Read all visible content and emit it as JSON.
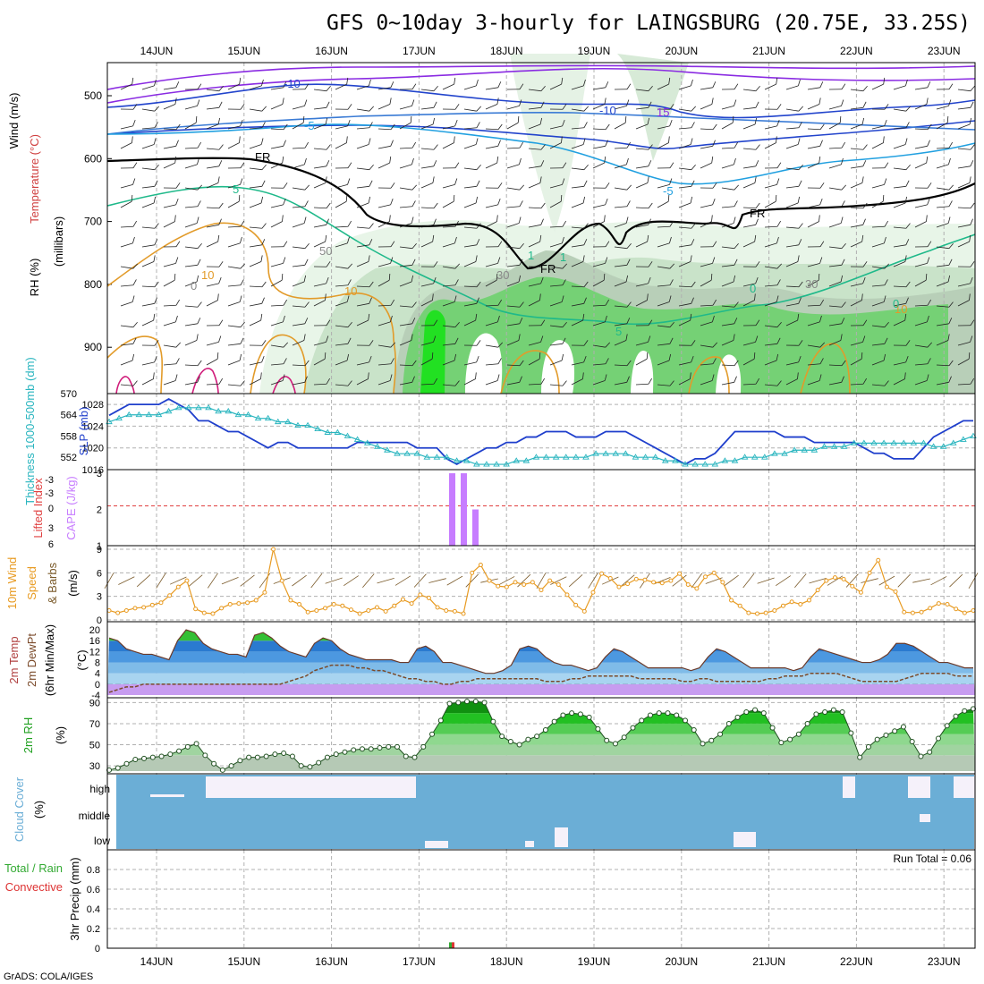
{
  "title": "GFS 0~10day 3-hourly for LAINGSBURG (20.75E, 33.25S)",
  "credit": "GrADS: COLA/IGES",
  "run_total_label": "Run Total = 0.06",
  "dates": [
    "14JUN",
    "15JUN",
    "16JUN",
    "17JUN",
    "18JUN",
    "19JUN",
    "20JUN",
    "21JUN",
    "22JUN",
    "23JUN"
  ],
  "colors": {
    "green_rh": "#33cc33",
    "blue_slp": "#1f3fcc",
    "cyan_thk": "#29b5bf",
    "purple_cape": "#c77dff",
    "orange_wind": "#e89b22",
    "cloud_blue": "#6baed6"
  },
  "chart_data": [
    {
      "type": "heatmap",
      "id": "upper_air",
      "ylabels": [
        "Wind (m/s)",
        "Temperature (°C)",
        "RH (%)",
        "(millibars)"
      ],
      "yticks": [
        500,
        600,
        700,
        800,
        900
      ],
      "contour_labels": [
        "-10",
        "-10",
        "15",
        "-5",
        "-5",
        "FR",
        "FR",
        "FR",
        "5",
        "5",
        "10",
        "10",
        "10",
        "30",
        "30",
        "50",
        "1",
        "1",
        "0",
        "0",
        "0"
      ]
    },
    {
      "type": "line",
      "id": "slp_thickness",
      "ylabel_left": "Thickness 1000-500mb (dm)",
      "ylabel_right": "SLP (mb)",
      "yticks_left": [
        552,
        558,
        564,
        570
      ],
      "yticks_right": [
        1016,
        1020,
        1024,
        1028
      ],
      "ylim_right": [
        1016,
        1030
      ],
      "ylim_left": [
        548.5,
        570
      ],
      "series": [
        {
          "name": "SLP (mb)",
          "values": [
            1026,
            1027,
            1028,
            1028,
            1028,
            1028,
            1029,
            1028,
            1027,
            1025,
            1025,
            1024,
            1023,
            1023,
            1022,
            1021,
            1020,
            1021,
            1021,
            1020,
            1020,
            1020,
            1020,
            1020,
            1020,
            1021,
            1021,
            1021,
            1021,
            1021,
            1021,
            1020,
            1020,
            1020,
            1018,
            1017,
            1018,
            1019,
            1020,
            1020,
            1021,
            1021,
            1022,
            1022,
            1023,
            1023,
            1023,
            1022,
            1022,
            1022,
            1023,
            1023,
            1023,
            1022,
            1021,
            1020,
            1019,
            1018,
            1017,
            1018,
            1018,
            1019,
            1021,
            1023,
            1023,
            1023,
            1023,
            1023,
            1022,
            1022,
            1022,
            1021,
            1021,
            1021,
            1021,
            1021,
            1020,
            1019,
            1019,
            1018,
            1018,
            1018,
            1020,
            1022,
            1023,
            1024,
            1025,
            1025
          ]
        },
        {
          "name": "Thickness 1000-500mb (dm)",
          "values": [
            562,
            563,
            564,
            564,
            564,
            564,
            565,
            566,
            566,
            566,
            566,
            565,
            565,
            564,
            564,
            563,
            563,
            562,
            562,
            561,
            561,
            560,
            559,
            559,
            558,
            557,
            556,
            555,
            554,
            553,
            553,
            553,
            552,
            552,
            552,
            551,
            551,
            550,
            550,
            550,
            550,
            551,
            551,
            552,
            552,
            552,
            552,
            552,
            552,
            553,
            553,
            553,
            553,
            552,
            552,
            552,
            551,
            551,
            550,
            550,
            550,
            550,
            551,
            551,
            552,
            552,
            552,
            553,
            553,
            554,
            554,
            554,
            555,
            555,
            555,
            556,
            556,
            556,
            556,
            556,
            556,
            556,
            556,
            555,
            555,
            556,
            557,
            558
          ]
        }
      ]
    },
    {
      "type": "bar",
      "id": "cape_li",
      "ylabel_left": "Lifted Index",
      "ylabel_right": "CAPE (J/kg)",
      "yticks_left": [
        "-3",
        "-3",
        "0",
        "3",
        "6"
      ],
      "yticks_right": [
        1,
        2,
        3
      ],
      "ylim": [
        1,
        3.1
      ],
      "dashed_level": 2.1,
      "bars": [
        {
          "x": "17JUN 09",
          "value": 3
        },
        {
          "x": "17JUN 12",
          "value": 3
        },
        {
          "x": "17JUN 15",
          "value": 2
        }
      ]
    },
    {
      "type": "line",
      "id": "wind10m",
      "ylabel": [
        "10m Wind",
        "Speed",
        "& Barbs",
        "(m/s)"
      ],
      "yticks": [
        0,
        3,
        6,
        9
      ],
      "ylim": [
        0,
        9
      ],
      "series": [
        {
          "name": "10m Wind Speed",
          "values": [
            1.2,
            0.9,
            1.2,
            1.5,
            1.6,
            1.9,
            2.2,
            3.1,
            4.2,
            5.0,
            1.4,
            0.9,
            0.8,
            1.5,
            2.0,
            2.1,
            2.2,
            2.5,
            3.5,
            9.0,
            5.0,
            2.5,
            2.0,
            1.0,
            1.2,
            1.5,
            2.0,
            1.8,
            1.3,
            0.8,
            1.2,
            1.6,
            1.1,
            1.8,
            2.6,
            2.1,
            3.2,
            2.8,
            1.6,
            1.2,
            1.1,
            0.8,
            6.0,
            7.0,
            5.0,
            4.3,
            4.2,
            4.8,
            4.5,
            4.8,
            3.8,
            5.0,
            4.5,
            3.2,
            1.9,
            1.1,
            3.5,
            5.9,
            5.3,
            4.2,
            4.6,
            5.2,
            5.1,
            4.8,
            4.7,
            5.0,
            5.9,
            4.5,
            4.0,
            5.5,
            6.0,
            4.8,
            2.5,
            1.8,
            0.9,
            0.8,
            0.9,
            1.2,
            1.8,
            2.3,
            2.0,
            2.5,
            3.8,
            5.0,
            5.4,
            5.2,
            4.3,
            3.5,
            6.0,
            7.6,
            4.2,
            3.6,
            1.0,
            0.9,
            1.0,
            1.5,
            2.1,
            2.0,
            1.4,
            0.9,
            1.2
          ]
        }
      ]
    },
    {
      "type": "area",
      "id": "temp2m",
      "ylabel": [
        "2m Temp",
        "2m DewPt",
        "(6hr Min/Max)",
        "(°C)"
      ],
      "yticks": [
        -4,
        0,
        4,
        8,
        12,
        16,
        20
      ],
      "ylim": [
        -4,
        22
      ],
      "series": [
        {
          "name": "2m Temp",
          "values": [
            17,
            16,
            13,
            12,
            11,
            11,
            10,
            9,
            16,
            20,
            19,
            15,
            13,
            12,
            11,
            11,
            10,
            18,
            19,
            17,
            14,
            12,
            11,
            10,
            15,
            17,
            16,
            13,
            11,
            10,
            9,
            9,
            9,
            9,
            8,
            8,
            13,
            14,
            12,
            8,
            8,
            7,
            6,
            5,
            4,
            4,
            5,
            7,
            13,
            14,
            13,
            10,
            8,
            7,
            7,
            6,
            5,
            6,
            10,
            13,
            12,
            10,
            8,
            6,
            6,
            6,
            6,
            6,
            5,
            6,
            10,
            13,
            12,
            10,
            8,
            6,
            6,
            6,
            6,
            6,
            5,
            6,
            10,
            13,
            12,
            11,
            10,
            9,
            8,
            8,
            9,
            11,
            15,
            15,
            14,
            12,
            10,
            8,
            8,
            7,
            6,
            6
          ]
        },
        {
          "name": "2m DewPt",
          "values": [
            -3,
            -2,
            -1,
            -1,
            0,
            0,
            0,
            0,
            0,
            0,
            0,
            0,
            0,
            0,
            0,
            0,
            0,
            0,
            0,
            0,
            0,
            1,
            2,
            3,
            5,
            6,
            7,
            7,
            7,
            6,
            6,
            5,
            5,
            4,
            3,
            2,
            2,
            1,
            1,
            0,
            0,
            1,
            1,
            2,
            2,
            2,
            2,
            2,
            2,
            2,
            2,
            1,
            1,
            1,
            2,
            2,
            3,
            3,
            3,
            3,
            3,
            3,
            2,
            2,
            2,
            2,
            2,
            1,
            1,
            2,
            2,
            1,
            1,
            1,
            1,
            1,
            1,
            2,
            2,
            3,
            3,
            3,
            4,
            4,
            4,
            4,
            3,
            2,
            1,
            1,
            1,
            1,
            1,
            2,
            3,
            4,
            4,
            4,
            4,
            3,
            3,
            3
          ]
        }
      ]
    },
    {
      "type": "area",
      "id": "rh2m",
      "ylabel": [
        "2m RH",
        "(%)"
      ],
      "yticks": [
        30,
        50,
        70,
        90
      ],
      "ylim": [
        25,
        92
      ],
      "series": [
        {
          "name": "2m RH",
          "values": [
            26,
            28,
            32,
            36,
            37,
            38,
            39,
            41,
            44,
            48,
            51,
            40,
            32,
            26,
            30,
            35,
            38,
            38,
            39,
            41,
            42,
            39,
            30,
            29,
            33,
            38,
            41,
            43,
            45,
            46,
            46,
            47,
            48,
            48,
            39,
            38,
            48,
            60,
            73,
            89,
            90,
            91,
            91,
            90,
            72,
            58,
            53,
            50,
            55,
            58,
            64,
            72,
            78,
            80,
            79,
            76,
            65,
            54,
            51,
            57,
            66,
            73,
            78,
            80,
            80,
            78,
            73,
            64,
            51,
            54,
            60,
            70,
            76,
            81,
            83,
            80,
            66,
            52,
            55,
            60,
            70,
            79,
            81,
            83,
            81,
            61,
            38,
            48,
            55,
            59,
            63,
            67,
            53,
            39,
            43,
            56,
            68,
            77,
            82,
            84
          ]
        }
      ]
    },
    {
      "type": "heatmap",
      "id": "cloud_cover",
      "ylabel": [
        "Cloud Cover",
        "(%)"
      ],
      "levels": [
        "high",
        "middle",
        "low"
      ]
    },
    {
      "type": "bar",
      "id": "precip",
      "ylabel": [
        "3hr Precip (mm)"
      ],
      "legend": [
        "Total / Rain",
        "Convective"
      ],
      "yticks": [
        0,
        0.2,
        0.4,
        0.6,
        0.8
      ],
      "ylim": [
        0,
        1
      ],
      "bars": [
        {
          "x": "17JUN 09",
          "value": 0.06
        }
      ]
    }
  ]
}
